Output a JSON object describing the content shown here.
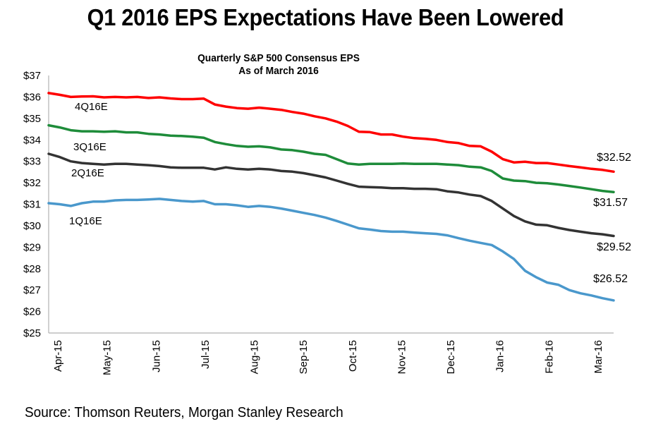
{
  "page": {
    "title": "Q1 2016 EPS Expectations Have Been Lowered",
    "source": "Source: Thomson Reuters, Morgan Stanley Research"
  },
  "chart_data": {
    "type": "line",
    "title": "Quarterly S&P 500 Consensus EPS",
    "subtitle": "As of March 2016",
    "xlabel": "",
    "ylabel": "",
    "ylim": [
      25,
      37
    ],
    "yticks": [
      25,
      26,
      27,
      28,
      29,
      30,
      31,
      32,
      33,
      34,
      35,
      36,
      37
    ],
    "ytick_labels": [
      "$25",
      "$26",
      "$27",
      "$28",
      "$29",
      "$30",
      "$31",
      "$32",
      "$33",
      "$34",
      "$35",
      "$36",
      "$37"
    ],
    "xtick_labels": [
      "Apr-15",
      "May-15",
      "Jun-15",
      "Jul-15",
      "Aug-15",
      "Sep-15",
      "Oct-15",
      "Nov-15",
      "Dec-15",
      "Jan-16",
      "Feb-16",
      "Mar-16"
    ],
    "x_period": "weekly, Apr-15 through late Mar-16",
    "grid": false,
    "legend": "inline labels",
    "series": [
      {
        "name": "4Q16E",
        "color": "#ff0000",
        "end_label": "$32.52",
        "values": [
          36.18,
          36.1,
          36.0,
          36.02,
          36.03,
          35.98,
          36.0,
          35.98,
          36.0,
          35.95,
          35.98,
          35.93,
          35.9,
          35.9,
          35.92,
          35.65,
          35.55,
          35.48,
          35.45,
          35.5,
          35.45,
          35.4,
          35.3,
          35.22,
          35.1,
          35.0,
          34.85,
          34.65,
          34.38,
          34.36,
          34.25,
          34.25,
          34.15,
          34.08,
          34.05,
          34.0,
          33.9,
          33.85,
          33.72,
          33.7,
          33.45,
          33.1,
          32.95,
          32.98,
          32.92,
          32.92,
          32.85,
          32.78,
          32.72,
          32.65,
          32.6,
          32.52
        ]
      },
      {
        "name": "3Q16E",
        "color": "#1e8c3a",
        "end_label": "$31.57",
        "values": [
          34.68,
          34.58,
          34.45,
          34.4,
          34.4,
          34.38,
          34.4,
          34.35,
          34.35,
          34.28,
          34.25,
          34.2,
          34.18,
          34.15,
          34.1,
          33.9,
          33.8,
          33.72,
          33.68,
          33.7,
          33.65,
          33.55,
          33.52,
          33.45,
          33.35,
          33.3,
          33.1,
          32.9,
          32.85,
          32.88,
          32.88,
          32.88,
          32.9,
          32.88,
          32.88,
          32.88,
          32.85,
          32.82,
          32.75,
          32.72,
          32.55,
          32.2,
          32.1,
          32.08,
          32.0,
          31.98,
          31.92,
          31.85,
          31.78,
          31.7,
          31.62,
          31.57
        ]
      },
      {
        "name": "2Q16E",
        "color": "#333333",
        "end_label": "$29.52",
        "values": [
          33.35,
          33.2,
          33.0,
          32.92,
          32.88,
          32.85,
          32.88,
          32.88,
          32.85,
          32.82,
          32.78,
          32.72,
          32.7,
          32.7,
          32.7,
          32.62,
          32.72,
          32.65,
          32.62,
          32.65,
          32.62,
          32.55,
          32.52,
          32.45,
          32.35,
          32.25,
          32.1,
          31.95,
          31.82,
          31.8,
          31.78,
          31.75,
          31.75,
          31.72,
          31.72,
          31.7,
          31.6,
          31.55,
          31.45,
          31.38,
          31.15,
          30.8,
          30.45,
          30.2,
          30.05,
          30.02,
          29.9,
          29.8,
          29.72,
          29.65,
          29.6,
          29.52
        ]
      },
      {
        "name": "1Q16E",
        "color": "#4a98cc",
        "end_label": "$26.52",
        "values": [
          31.05,
          31.0,
          30.92,
          31.05,
          31.12,
          31.12,
          31.18,
          31.2,
          31.2,
          31.22,
          31.25,
          31.2,
          31.15,
          31.12,
          31.15,
          31.0,
          31.0,
          30.95,
          30.88,
          30.92,
          30.88,
          30.8,
          30.7,
          30.6,
          30.5,
          30.38,
          30.22,
          30.05,
          29.88,
          29.82,
          29.75,
          29.72,
          29.72,
          29.68,
          29.65,
          29.62,
          29.55,
          29.42,
          29.3,
          29.2,
          29.1,
          28.8,
          28.45,
          27.9,
          27.6,
          27.35,
          27.25,
          27.0,
          26.85,
          26.75,
          26.62,
          26.52
        ]
      }
    ],
    "series_label_positions": "inline near start of each line, below the line",
    "end_labels_position": "right end of each line"
  }
}
